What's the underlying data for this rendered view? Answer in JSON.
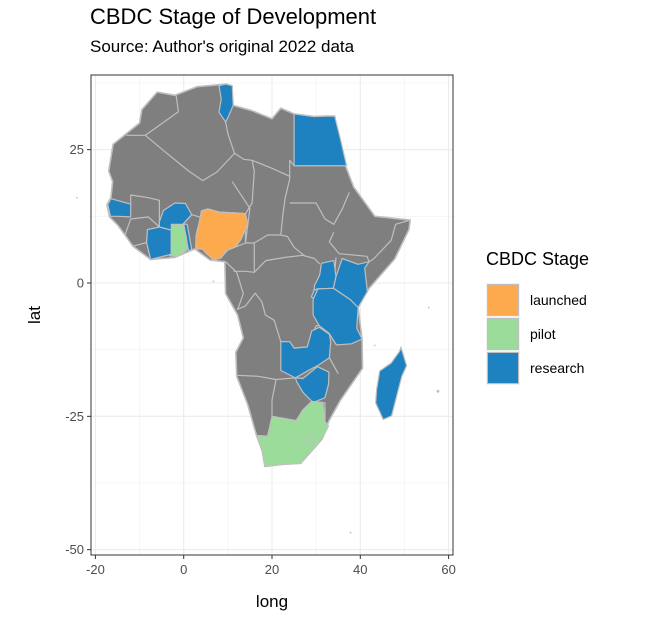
{
  "chart_data": {
    "type": "choropleth-map",
    "title": "CBDC Stage of Development",
    "subtitle": "Source: Author's original 2022 data",
    "xlabel": "long",
    "ylabel": "lat",
    "x_ticks": [
      "-20",
      "0",
      "20",
      "40",
      "60"
    ],
    "y_ticks": [
      "25",
      "0",
      "-25",
      "-50"
    ],
    "xlim": [
      -21,
      61
    ],
    "ylim": [
      -51,
      39
    ],
    "grid": true,
    "legend": {
      "title": "CBDC Stage",
      "placement": "right",
      "entries": [
        {
          "label": "launched",
          "color": "#FDAA4F"
        },
        {
          "label": "pilot",
          "color": "#9CDC9A"
        },
        {
          "label": "research",
          "color": "#1F82C0"
        }
      ]
    },
    "default_color": "#7F7F7F",
    "border_color": "#BFBFBF",
    "country_stage": [
      {
        "country": "Nigeria",
        "stage": "launched"
      },
      {
        "country": "Ghana",
        "stage": "pilot"
      },
      {
        "country": "South Africa",
        "stage": "pilot"
      },
      {
        "country": "Tunisia",
        "stage": "research"
      },
      {
        "country": "Egypt",
        "stage": "research"
      },
      {
        "country": "Senegal",
        "stage": "research"
      },
      {
        "country": "Burkina Faso",
        "stage": "research"
      },
      {
        "country": "Cote d'Ivoire",
        "stage": "research"
      },
      {
        "country": "Togo",
        "stage": "research"
      },
      {
        "country": "Uganda",
        "stage": "research"
      },
      {
        "country": "Kenya",
        "stage": "research"
      },
      {
        "country": "Rwanda",
        "stage": "research"
      },
      {
        "country": "Tanzania",
        "stage": "research"
      },
      {
        "country": "Zambia",
        "stage": "research"
      },
      {
        "country": "Zimbabwe",
        "stage": "research"
      },
      {
        "country": "Madagascar",
        "stage": "research"
      }
    ]
  }
}
